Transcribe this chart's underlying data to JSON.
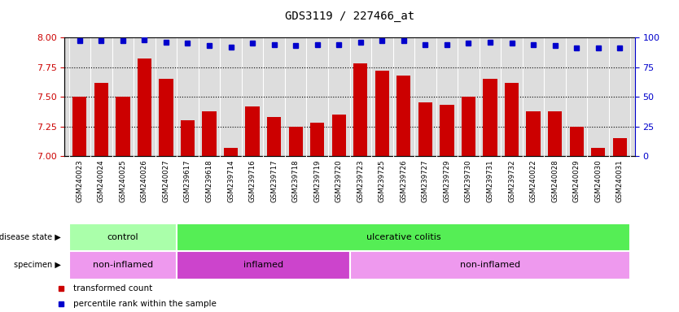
{
  "title": "GDS3119 / 227466_at",
  "categories": [
    "GSM240023",
    "GSM240024",
    "GSM240025",
    "GSM240026",
    "GSM240027",
    "GSM239617",
    "GSM239618",
    "GSM239714",
    "GSM239716",
    "GSM239717",
    "GSM239718",
    "GSM239719",
    "GSM239720",
    "GSM239723",
    "GSM239725",
    "GSM239726",
    "GSM239727",
    "GSM239729",
    "GSM239730",
    "GSM239731",
    "GSM239732",
    "GSM240022",
    "GSM240028",
    "GSM240029",
    "GSM240030",
    "GSM240031"
  ],
  "bar_values": [
    7.5,
    7.62,
    7.5,
    7.82,
    7.65,
    7.3,
    7.38,
    7.07,
    7.42,
    7.33,
    7.25,
    7.28,
    7.35,
    7.78,
    7.72,
    7.68,
    7.45,
    7.43,
    7.5,
    7.65,
    7.62,
    7.38,
    7.38,
    7.25,
    7.07,
    7.15
  ],
  "percentile_values": [
    97,
    97,
    97,
    98,
    96,
    95,
    93,
    92,
    95,
    94,
    93,
    94,
    94,
    96,
    97,
    97,
    94,
    94,
    95,
    96,
    95,
    94,
    93,
    91,
    91,
    91
  ],
  "ylim_left": [
    7.0,
    8.0
  ],
  "ylim_right": [
    0,
    100
  ],
  "yticks_left": [
    7.0,
    7.25,
    7.5,
    7.75,
    8.0
  ],
  "yticks_right": [
    0,
    25,
    50,
    75,
    100
  ],
  "hgrid_values": [
    7.25,
    7.5,
    7.75
  ],
  "bar_color": "#cc0000",
  "dot_color": "#0000cc",
  "dot_marker": "s",
  "dot_size": 5,
  "title_fontsize": 10,
  "title_family": "monospace",
  "disease_groups": [
    {
      "label": "control",
      "start": 0,
      "end": 5,
      "color": "#aaffaa"
    },
    {
      "label": "ulcerative colitis",
      "start": 5,
      "end": 26,
      "color": "#55ee55"
    }
  ],
  "specimen_groups": [
    {
      "label": "non-inflamed",
      "start": 0,
      "end": 5,
      "color": "#ee99ee"
    },
    {
      "label": "inflamed",
      "start": 5,
      "end": 13,
      "color": "#cc44cc"
    },
    {
      "label": "non-inflamed",
      "start": 13,
      "end": 26,
      "color": "#ee99ee"
    }
  ],
  "legend_items": [
    {
      "color": "#cc0000",
      "label": "transformed count"
    },
    {
      "color": "#0000cc",
      "label": "percentile rank within the sample"
    }
  ],
  "left_tick_color": "#cc0000",
  "right_tick_color": "#0000cc",
  "chart_bg": "#dddddd",
  "xlabel_bg": "#cccccc",
  "fig_bg": "white"
}
